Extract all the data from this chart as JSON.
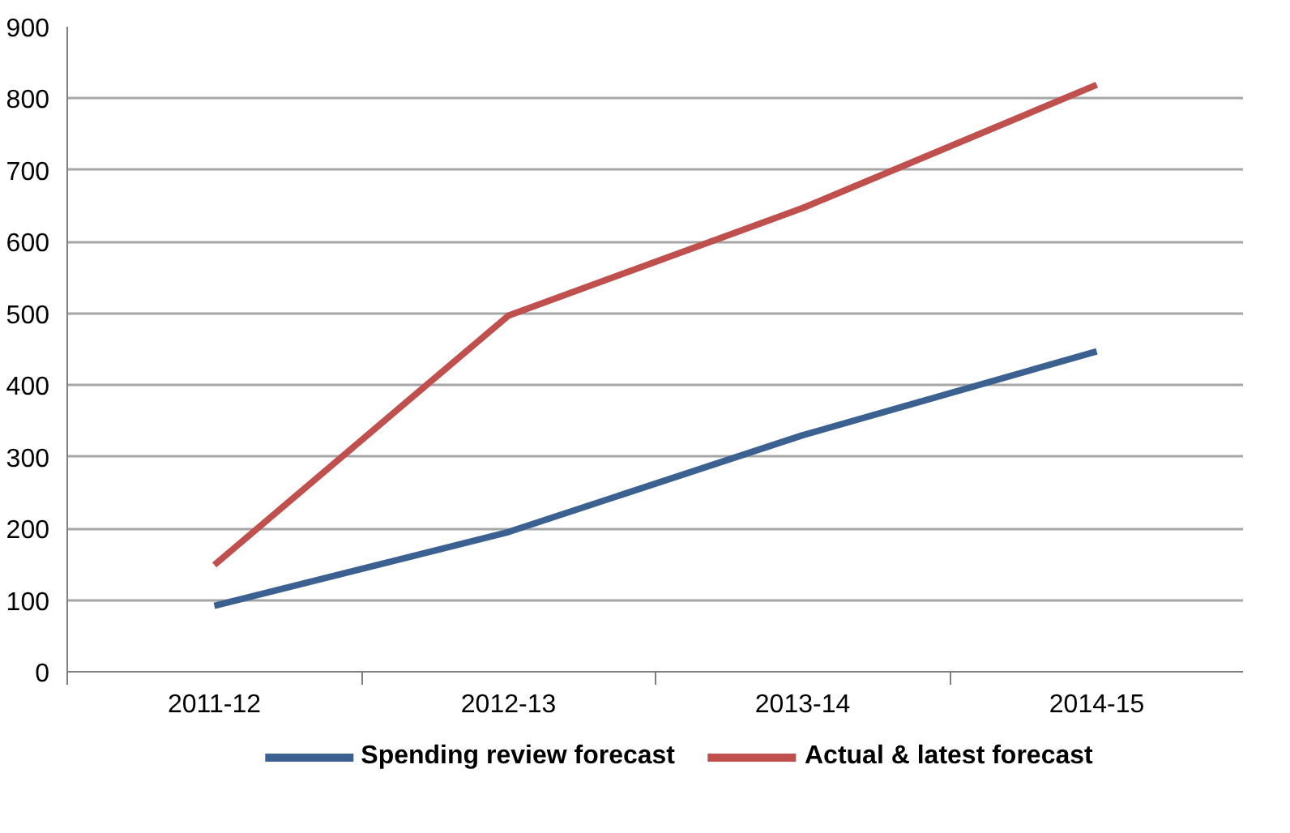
{
  "chart_data": {
    "type": "line",
    "categories": [
      "2011-12",
      "2012-13",
      "2013-14",
      "2014-15"
    ],
    "series": [
      {
        "name": "Spending review forecast",
        "color": "#3a6190",
        "values": [
          92,
          195,
          330,
          447
        ]
      },
      {
        "name": "Actual & latest forecast",
        "color": "#c0504d",
        "values": [
          149,
          497,
          647,
          819
        ]
      }
    ],
    "ylim": [
      0,
      900
    ],
    "yticks": [
      0,
      100,
      200,
      300,
      400,
      500,
      600,
      700,
      800,
      900
    ],
    "grid": "y",
    "legend": "bottom",
    "marker": "none",
    "line_style": "solid"
  }
}
